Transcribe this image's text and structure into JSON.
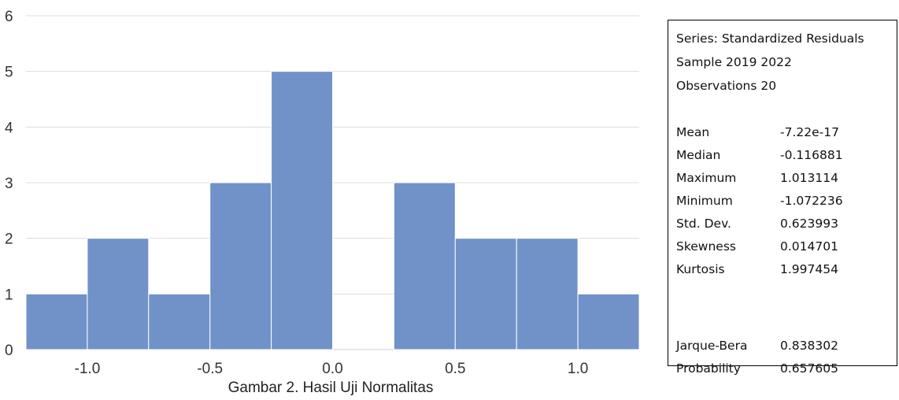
{
  "chart_data": {
    "type": "bar",
    "title": "",
    "xlabel": "",
    "ylabel": "",
    "bin_width": 0.25,
    "bins": [
      {
        "x0": -1.25,
        "x1": -1.0,
        "count": 1
      },
      {
        "x0": -1.0,
        "x1": -0.75,
        "count": 2
      },
      {
        "x0": -0.75,
        "x1": -0.5,
        "count": 1
      },
      {
        "x0": -0.5,
        "x1": -0.25,
        "count": 3
      },
      {
        "x0": -0.25,
        "x1": 0.0,
        "count": 5
      },
      {
        "x0": 0.0,
        "x1": 0.25,
        "count": 0
      },
      {
        "x0": 0.25,
        "x1": 0.5,
        "count": 3
      },
      {
        "x0": 0.5,
        "x1": 0.75,
        "count": 2
      },
      {
        "x0": 0.75,
        "x1": 1.0,
        "count": 2
      },
      {
        "x0": 1.0,
        "x1": 1.25,
        "count": 1
      }
    ],
    "xlim": [
      -1.25,
      1.25
    ],
    "ylim": [
      0,
      6
    ],
    "x_ticks": [
      "-1.0",
      "-0.5",
      "0.0",
      "0.5",
      "1.0"
    ],
    "x_tick_values": [
      -1.0,
      -0.5,
      0.0,
      0.5,
      1.0
    ],
    "y_ticks": [
      "0",
      "1",
      "2",
      "3",
      "4",
      "5",
      "6"
    ],
    "y_tick_values": [
      0,
      1,
      2,
      3,
      4,
      5,
      6
    ],
    "grid": true,
    "bar_color": "#7092c8",
    "grid_color": "#dcdcdc"
  },
  "stats": {
    "series": "Series: Standardized Residuals",
    "sample": "Sample 2019 2022",
    "observations": "Observations 20",
    "rows": [
      {
        "label": "Mean",
        "value": "-7.22e-17"
      },
      {
        "label": "Median",
        "value": "-0.116881"
      },
      {
        "label": "Maximum",
        "value": "1.013114"
      },
      {
        "label": "Minimum",
        "value": "-1.072236"
      },
      {
        "label": "Std. Dev.",
        "value": "0.623993"
      },
      {
        "label": "Skewness",
        "value": "0.014701"
      },
      {
        "label": "Kurtosis",
        "value": "1.997454"
      }
    ],
    "jb_rows": [
      {
        "label": "Jarque-Bera",
        "value": "0.838302"
      },
      {
        "label": "Probability",
        "value": "0.657605"
      }
    ]
  },
  "caption": "Gambar 2. Hasil Uji Normalitas"
}
